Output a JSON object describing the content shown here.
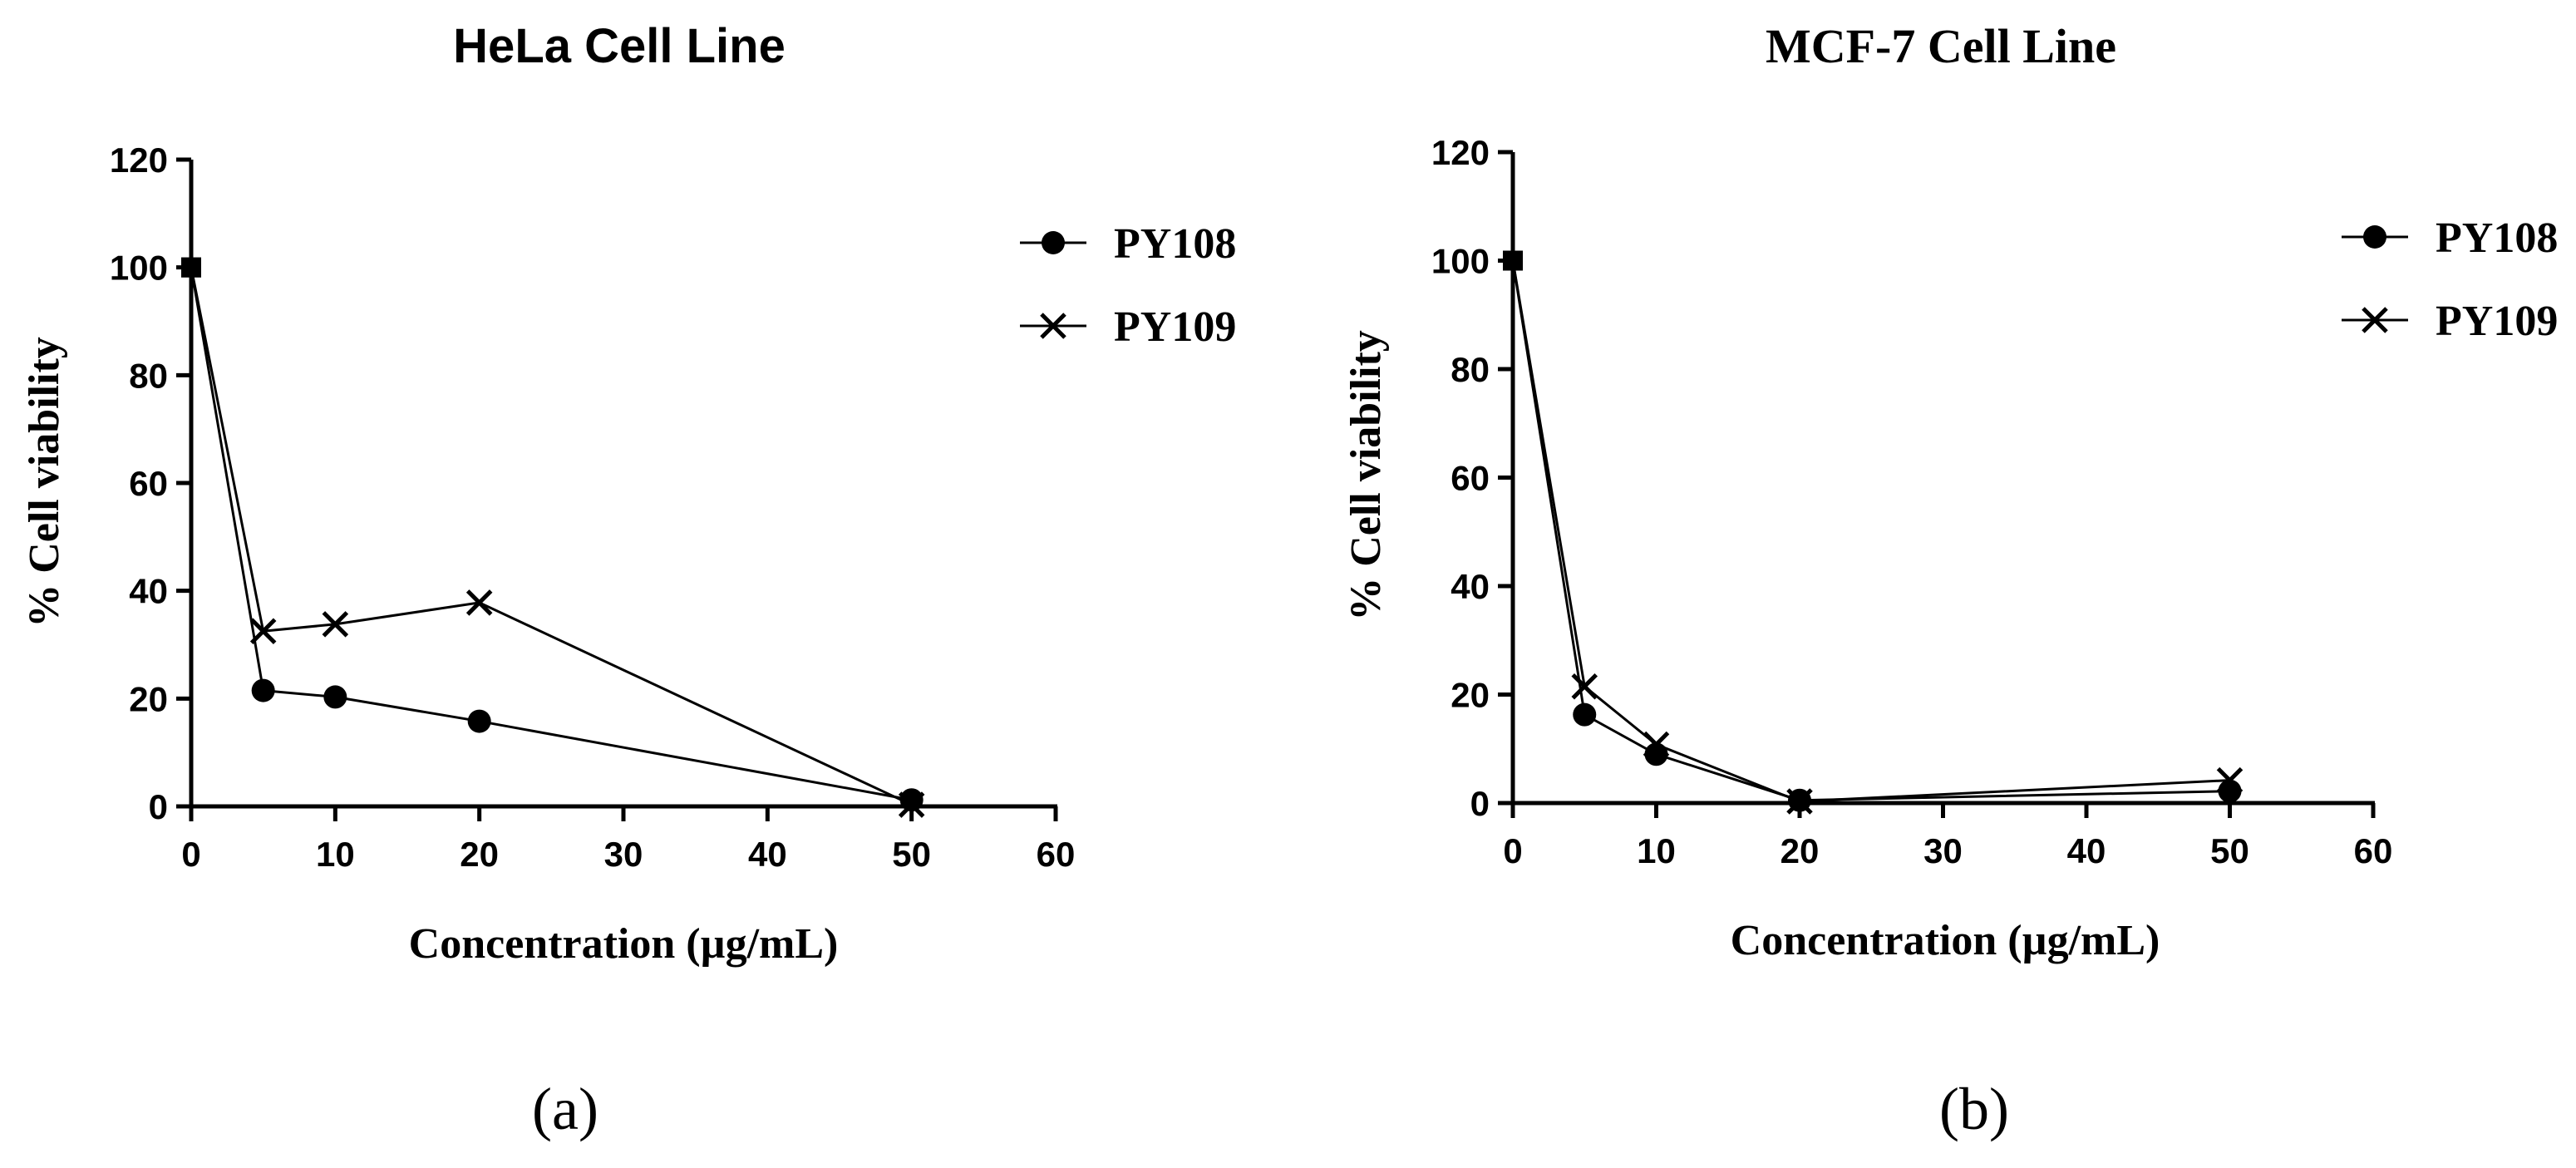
{
  "chart_data": [
    {
      "type": "line",
      "title": "HeLa Cell Line",
      "xlabel": "Concentration (µg/mL)",
      "ylabel": "% Cell viability",
      "xlim": [
        0,
        60
      ],
      "ylim": [
        0,
        120
      ],
      "xticks": [
        0,
        10,
        20,
        30,
        40,
        50,
        60
      ],
      "yticks": [
        0,
        20,
        40,
        60,
        80,
        100,
        120
      ],
      "grid": false,
      "legend": "top-right",
      "panel_label": "(a)",
      "series": [
        {
          "name": "PY108",
          "marker": "circle",
          "x": [
            0,
            5,
            10,
            20,
            50
          ],
          "y": [
            100,
            21.5,
            20.3,
            15.8,
            1.2
          ]
        },
        {
          "name": "PY109",
          "marker": "x",
          "x": [
            0,
            5,
            10,
            20,
            50
          ],
          "y": [
            100,
            32.5,
            33.8,
            37.8,
            0.3
          ]
        }
      ]
    },
    {
      "type": "line",
      "title": "MCF-7 Cell Line",
      "xlabel": "Concentration (µg/mL)",
      "ylabel": "% Cell viability",
      "xlim": [
        0,
        60
      ],
      "ylim": [
        0,
        120
      ],
      "xticks": [
        0,
        10,
        20,
        30,
        40,
        50,
        60
      ],
      "yticks": [
        0,
        20,
        40,
        60,
        80,
        100,
        120
      ],
      "grid": false,
      "legend": "top-right",
      "panel_label": "(b)",
      "series": [
        {
          "name": "PY108",
          "marker": "circle",
          "x": [
            0,
            5,
            10,
            20,
            50
          ],
          "y": [
            100,
            16.3,
            9.0,
            0.5,
            2.2
          ]
        },
        {
          "name": "PY109",
          "marker": "x",
          "x": [
            0,
            5,
            10,
            20,
            50
          ],
          "y": [
            100,
            21.5,
            10.8,
            0.3,
            4.2
          ]
        }
      ]
    }
  ]
}
